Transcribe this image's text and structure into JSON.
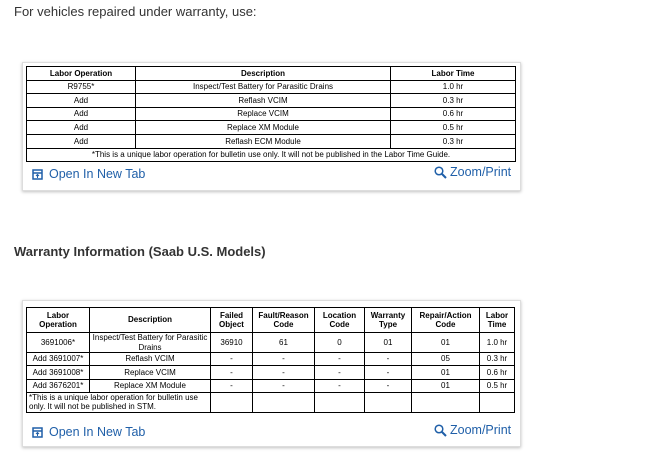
{
  "intro": "For vehicles repaired under warranty, use:",
  "table1": {
    "headers": [
      "Labor Operation",
      "Description",
      "Labor Time"
    ],
    "rows": [
      [
        "R9755*",
        "Inspect/Test Battery for Parasitic Drains",
        "1.0 hr"
      ],
      [
        "Add",
        "Reflash VCIM",
        "0.3 hr"
      ],
      [
        "Add",
        "Replace VCIM",
        "0.6 hr"
      ],
      [
        "Add",
        "Replace XM Module",
        "0.5 hr"
      ],
      [
        "Add",
        "Reflash ECM Module",
        "0.3 hr"
      ]
    ],
    "footnote": "*This is a unique labor operation for bulletin use only. It will not be published in the Labor Time Guide."
  },
  "links1": {
    "open": "Open In New Tab",
    "zoom": "Zoom/Print"
  },
  "heading2": "Warranty Information (Saab U.S. Models)",
  "table2": {
    "headers": [
      "Labor Operation",
      "Description",
      "Failed Object",
      "Fault/Reason Code",
      "Location Code",
      "Warranty Type",
      "Repair/Action Code",
      "Labor Time"
    ],
    "rows": [
      [
        "3691006*",
        "Inspect/Test Battery for Parasitic Drains",
        "36910",
        "61",
        "0",
        "01",
        "01",
        "1.0 hr"
      ],
      [
        "Add 3691007*",
        "Reflash VCIM",
        "-",
        "-",
        "-",
        "-",
        "05",
        "0.3 hr"
      ],
      [
        "Add 3691008*",
        "Replace VCIM",
        "-",
        "-",
        "-",
        "-",
        "01",
        "0.6 hr"
      ],
      [
        "Add 3676201*",
        "Replace XM Module",
        "-",
        "-",
        "-",
        "-",
        "01",
        "0.5 hr"
      ]
    ],
    "footnote": "*This is a unique labor operation for bulletin use only. It will not be published in STM."
  },
  "links2": {
    "open": "Open In New Tab",
    "zoom": "Zoom/Print"
  }
}
